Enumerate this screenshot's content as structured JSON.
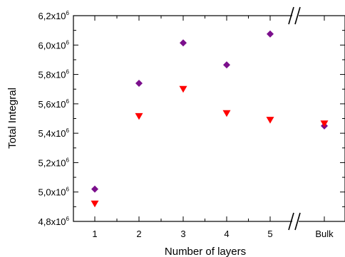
{
  "chart_data": {
    "type": "scatter",
    "title": "",
    "xlabel": "Number of layers",
    "ylabel": "Total Integral",
    "categories": [
      "1",
      "2",
      "3",
      "4",
      "5",
      "Bulk"
    ],
    "ylim": [
      4800000,
      6200000
    ],
    "yticks": [
      {
        "mant": "4,8x10",
        "exp": "6"
      },
      {
        "mant": "5,0x10",
        "exp": "6"
      },
      {
        "mant": "5,2x10",
        "exp": "6"
      },
      {
        "mant": "5,4x10",
        "exp": "6"
      },
      {
        "mant": "5,6x10",
        "exp": "6"
      },
      {
        "mant": "5,8x10",
        "exp": "6"
      },
      {
        "mant": "6,0x10",
        "exp": "6"
      },
      {
        "mant": "6,2x10",
        "exp": "6"
      }
    ],
    "axis_break": "between 5 and Bulk",
    "grid": false,
    "series": [
      {
        "marker": "diamond",
        "color": "#7b0f8c",
        "values": [
          5020000,
          5740000,
          6015000,
          5865000,
          6075000,
          5450000
        ]
      },
      {
        "marker": "triangle-down",
        "color": "#ff0000",
        "values": [
          4920000,
          5515000,
          5700000,
          5535000,
          5490000,
          5465000
        ]
      }
    ]
  }
}
